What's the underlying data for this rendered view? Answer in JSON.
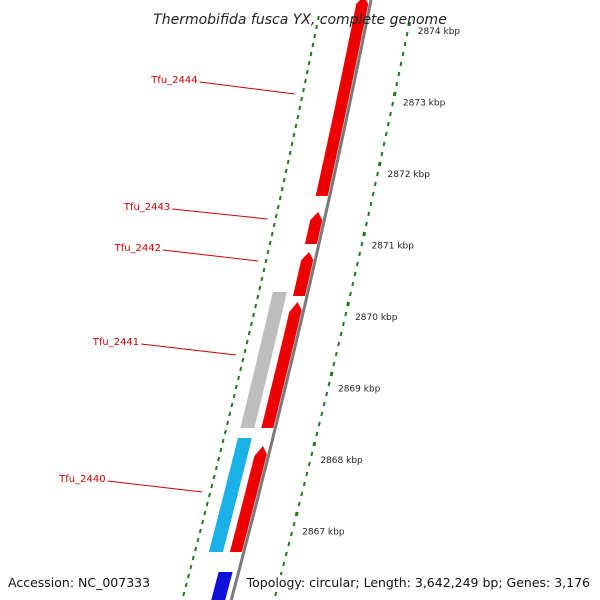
{
  "title": "Thermobifida fusca YX, complete genome",
  "accession": "Accession: NC_007333",
  "topology": "Topology: circular; Length: 3,642,249 bp; Genes: 3,176",
  "colors": {
    "forward_gene": "#ee0000",
    "reverse_gene": "#bdbdbd",
    "cyan_feature": "#1ab0e8",
    "blue_feature": "#1010dd",
    "tick": "#1a7a1a",
    "label": "#cc0000",
    "backbone": "#7a7a7a"
  },
  "scale_ticks": [
    "2874 kbp",
    "2873 kbp",
    "2872 kbp",
    "2871 kbp",
    "2870 kbp",
    "2869 kbp",
    "2868 kbp",
    "2867 kbp"
  ],
  "gene_labels": [
    "Tfu_2444",
    "Tfu_2443",
    "Tfu_2442",
    "Tfu_2441",
    "Tfu_2440"
  ]
}
